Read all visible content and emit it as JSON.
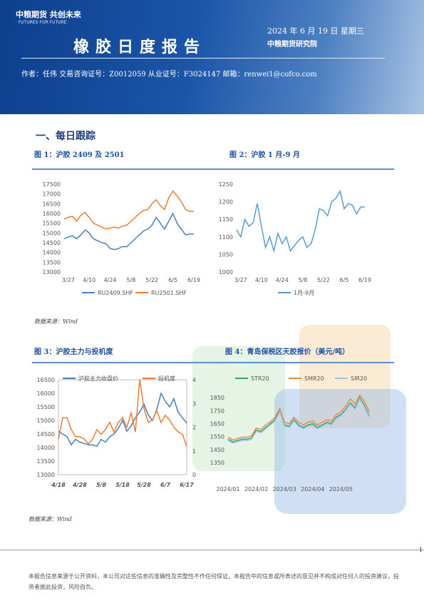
{
  "header": {
    "logo": "中粮期货 共创未来",
    "logo_sub": "· FUTURES FOR FUTURE ·",
    "title": "橡胶日度报告",
    "date": "2024 年 6 月 19 日 星期三",
    "institute": "中粮期货研究院",
    "author": "作者：任伟   交易咨询证号：Z0012059   从业证号：F3024147   邮箱：renwei1@cofco.com"
  },
  "section": "一、每日跟踪",
  "charts": [
    {
      "type": "line",
      "title": "图 1：沪胶 2409 及 2501",
      "ylim": [
        13000,
        17500
      ],
      "yticks": [
        13000,
        13500,
        14000,
        14500,
        15000,
        15500,
        16000,
        16500,
        17000,
        17500
      ],
      "categories": [
        null,
        "3/27",
        null,
        null,
        null,
        null,
        "4/10",
        null,
        null,
        null,
        null,
        "4/24",
        null,
        null,
        null,
        null,
        "5/8",
        null,
        null,
        null,
        null,
        "5/22",
        null,
        null,
        null,
        null,
        "6/5",
        null,
        null,
        null,
        null,
        "6/19"
      ],
      "series": [
        {
          "name": "RU2409.SHF",
          "color": "#4a7ebb",
          "values": [
            14700,
            14800,
            14850,
            14700,
            14900,
            15150,
            15000,
            14700,
            14600,
            14500,
            14450,
            14200,
            14150,
            14200,
            14300,
            14300,
            14500,
            14700,
            14900,
            15100,
            15200,
            15400,
            15800,
            15500,
            15200,
            15600,
            16000,
            15500,
            15200,
            14900,
            14950,
            14950
          ]
        },
        {
          "name": "RU2501.SHF",
          "color": "#ed7d31",
          "values": [
            15700,
            15800,
            15850,
            15600,
            15900,
            16050,
            15800,
            15500,
            15400,
            15300,
            15200,
            15250,
            15300,
            15250,
            15350,
            15400,
            15600,
            15800,
            16000,
            16150,
            16200,
            16500,
            16700,
            16400,
            16200,
            16800,
            17150,
            16900,
            16600,
            16200,
            16100,
            16100
          ]
        }
      ]
    },
    {
      "type": "line",
      "title": "图 2：沪胶 1 月-9 月",
      "ylim": [
        1000,
        1250
      ],
      "yticks": [
        1000,
        1050,
        1100,
        1150,
        1200,
        1250
      ],
      "categories": [
        null,
        "3/27",
        null,
        null,
        null,
        null,
        "4/10",
        null,
        null,
        null,
        null,
        "4/24",
        null,
        null,
        null,
        null,
        "5/8",
        null,
        null,
        null,
        null,
        "5/22",
        null,
        null,
        null,
        null,
        "6/5",
        null,
        null,
        null,
        null,
        "6/19"
      ],
      "series": [
        {
          "name": "1月-9月",
          "color": "#5b9bd5",
          "values": [
            1120,
            1100,
            1150,
            1130,
            1140,
            1195,
            1130,
            1070,
            1100,
            1060,
            1110,
            1080,
            1100,
            1060,
            1075,
            1090,
            1100,
            1070,
            1080,
            1120,
            1180,
            1175,
            1160,
            1200,
            1210,
            1230,
            1180,
            1195,
            1190,
            1165,
            1185,
            1185
          ]
        }
      ]
    },
    {
      "type": "line",
      "title": "图 3：沪胶主力与投机度",
      "ylim": [
        13000,
        16500
      ],
      "yticks": [
        13000,
        13500,
        14000,
        14500,
        15000,
        15500,
        16000,
        16500
      ],
      "y2lim": [
        0,
        4
      ],
      "y2ticks": [
        0,
        1,
        2,
        3,
        4
      ],
      "categories": [
        "4/18",
        null,
        null,
        null,
        null,
        "4/28",
        null,
        null,
        null,
        null,
        "5/8",
        null,
        null,
        null,
        null,
        "5/18",
        null,
        null,
        null,
        null,
        "5/28",
        null,
        null,
        null,
        null,
        "6/7",
        null,
        null,
        null,
        null,
        "6/17"
      ],
      "series": [
        {
          "name": "沪胶主力收盘价",
          "color": "#4a7ebb",
          "values": [
            14600,
            14500,
            14400,
            14100,
            14300,
            14200,
            14150,
            14100,
            14100,
            14050,
            14300,
            14200,
            14400,
            14500,
            14700,
            15000,
            14600,
            14800,
            15100,
            15300,
            15600,
            15200,
            15000,
            15400,
            16000,
            15700,
            15500,
            15800,
            15300,
            15100,
            14900
          ]
        },
        {
          "name": "投机度",
          "color": "#ed7d31",
          "axis": "y2",
          "values": [
            1.5,
            2.4,
            2.4,
            1.9,
            1.6,
            1.6,
            1.5,
            1.3,
            1.5,
            1.9,
            1.7,
            1.9,
            2.2,
            1.8,
            2.2,
            2.4,
            2.0,
            2.6,
            1.8,
            4.0,
            2.8,
            2.2,
            2.3,
            2.7,
            2.2,
            2.5,
            2.3,
            2.0,
            1.8,
            1.7,
            1.2
          ]
        }
      ]
    },
    {
      "type": "line",
      "title": "图 4：青岛保税区天胶报价（美元/吨）",
      "ylim": [
        1350,
        1900
      ],
      "yticks": [
        1350,
        1450,
        1550,
        1650,
        1750,
        1850
      ],
      "categories": [
        "2024/01",
        null,
        null,
        null,
        null,
        null,
        "2024/02",
        null,
        null,
        null,
        null,
        null,
        "2024/03",
        null,
        null,
        null,
        null,
        null,
        "2024/04",
        null,
        null,
        null,
        null,
        null,
        "2024/05",
        null,
        null,
        null,
        null,
        null,
        null
      ],
      "series": [
        {
          "name": "STR20",
          "color": "#3aa36b",
          "values": [
            1530,
            1510,
            1520,
            1530,
            1530,
            1540,
            1600,
            1590,
            1620,
            1650,
            1680,
            1750,
            1640,
            1630,
            1680,
            1640,
            1620,
            1640,
            1650,
            1620,
            1640,
            1660,
            1650,
            1700,
            1720,
            1760,
            1810,
            1770,
            1850,
            1790,
            1710
          ]
        },
        {
          "name": "SMR20",
          "color": "#f08a3c",
          "values": [
            1545,
            1525,
            1535,
            1545,
            1545,
            1555,
            1615,
            1605,
            1640,
            1665,
            1700,
            1765,
            1660,
            1650,
            1700,
            1660,
            1640,
            1660,
            1670,
            1640,
            1660,
            1680,
            1670,
            1720,
            1740,
            1785,
            1840,
            1800,
            1870,
            1820,
            1740
          ]
        },
        {
          "name": "SIR20",
          "color": "#9dc3e6",
          "values": [
            1520,
            1500,
            1510,
            1520,
            1520,
            1530,
            1590,
            1580,
            1610,
            1640,
            1670,
            1740,
            1630,
            1620,
            1670,
            1630,
            1610,
            1630,
            1640,
            1610,
            1630,
            1650,
            1640,
            1690,
            1710,
            1750,
            1800,
            1760,
            1840,
            1780,
            1700
          ]
        }
      ]
    }
  ],
  "sources": [
    "数据来源：Wind",
    "数据来源：Wind"
  ],
  "page_number": "1",
  "disclaimer": "本报告信息来源于公开资料，本公司对这些信息的准确性及完整性不作任何保证。本报告中的信息或所表述的意见并不构成对任何人的投资建议，投资者据此投资，风险自负。"
}
